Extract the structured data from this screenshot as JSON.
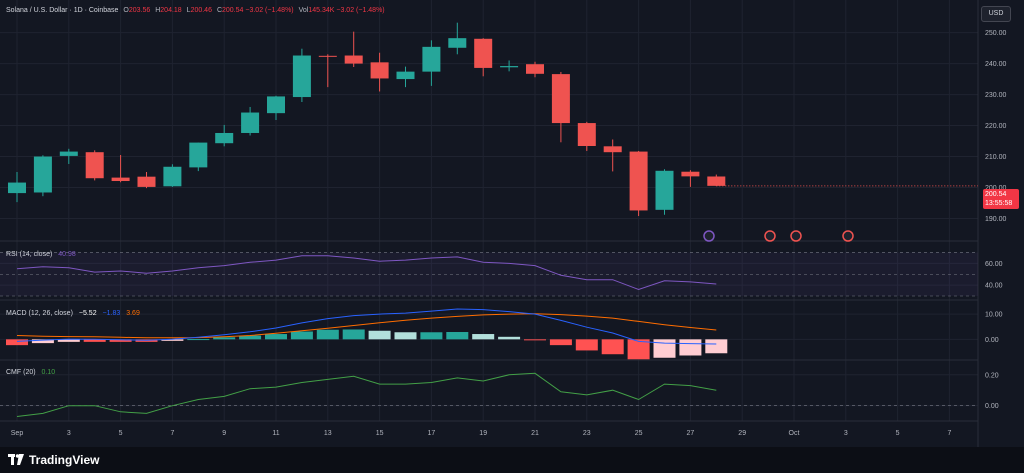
{
  "header": {
    "symbol": "Solana / U.S. Dollar · 1D · Coinbase",
    "open_label": "O",
    "open": "203.56",
    "high_label": "H",
    "high": "204.18",
    "low_label": "L",
    "low": "200.46",
    "close_label": "C",
    "close": "200.54",
    "change": "−3.02 (−1.48%)",
    "vol_label": "Vol",
    "vol": "145.34K",
    "vol_change": "−3.02 (−1.48%)"
  },
  "currency_button": "USD",
  "last_price": {
    "price": "200.54",
    "countdown": "13:55:58"
  },
  "rsi_label": {
    "name": "RSI (14, close)",
    "value": "40.98"
  },
  "macd_label": {
    "name": "MACD (12, 26, close)",
    "hist": "−5.52",
    "macd": "−1.83",
    "signal": "3.69"
  },
  "cmf_label": {
    "name": "CMF (20)",
    "value": "0.10"
  },
  "brand": "TradingView",
  "colors": {
    "bg": "#131722",
    "up": "#26a69a",
    "down": "#ef5350",
    "grid": "#1f2330",
    "rsi": "#7e57c2",
    "macd": "#2962ff",
    "signal": "#ff6d00",
    "cmf": "#43a047",
    "hist_up_strong": "#26a69a",
    "hist_up_weak": "#b2dfdb",
    "hist_down_strong": "#ff5252",
    "hist_down_weak": "#ffcdd2"
  },
  "chart_data": {
    "type": "candlestick",
    "title": "Solana / U.S. Dollar · 1D · Coinbase",
    "x_tick_labels": [
      "Sep",
      "3",
      "5",
      "7",
      "9",
      "11",
      "13",
      "15",
      "17",
      "19",
      "21",
      "23",
      "25",
      "27",
      "29",
      "Oct",
      "3",
      "5",
      "7"
    ],
    "price_axis": {
      "ticks": [
        "190.00",
        "200.00",
        "210.00",
        "220.00",
        "230.00",
        "240.00",
        "250.00"
      ],
      "range": [
        185,
        256
      ]
    },
    "candles": [
      {
        "date": "Sep 1",
        "o": 198.2,
        "h": 205.0,
        "l": 195.3,
        "c": 201.6
      },
      {
        "date": "Sep 2",
        "o": 198.4,
        "h": 210.4,
        "l": 197.2,
        "c": 210.0
      },
      {
        "date": "Sep 3",
        "o": 210.2,
        "h": 212.5,
        "l": 207.6,
        "c": 211.6
      },
      {
        "date": "Sep 4",
        "o": 211.4,
        "h": 212.0,
        "l": 202.3,
        "c": 203.0
      },
      {
        "date": "Sep 5",
        "o": 203.2,
        "h": 210.5,
        "l": 201.7,
        "c": 202.1
      },
      {
        "date": "Sep 6",
        "o": 203.5,
        "h": 205.0,
        "l": 199.8,
        "c": 200.2
      },
      {
        "date": "Sep 7",
        "o": 200.4,
        "h": 207.5,
        "l": 200.2,
        "c": 206.7
      },
      {
        "date": "Sep 8",
        "o": 206.5,
        "h": 214.5,
        "l": 205.3,
        "c": 214.5
      },
      {
        "date": "Sep 9",
        "o": 214.3,
        "h": 220.2,
        "l": 213.3,
        "c": 217.6
      },
      {
        "date": "Sep 10",
        "o": 217.6,
        "h": 226.0,
        "l": 216.8,
        "c": 224.2
      },
      {
        "date": "Sep 11",
        "o": 224.0,
        "h": 229.6,
        "l": 221.8,
        "c": 229.4
      },
      {
        "date": "Sep 12",
        "o": 229.2,
        "h": 244.8,
        "l": 227.6,
        "c": 242.6
      },
      {
        "date": "Sep 13",
        "o": 242.5,
        "h": 243.0,
        "l": 232.4,
        "c": 242.3
      },
      {
        "date": "Sep 14",
        "o": 242.6,
        "h": 250.3,
        "l": 238.9,
        "c": 240.0
      },
      {
        "date": "Sep 15",
        "o": 240.4,
        "h": 243.5,
        "l": 231.0,
        "c": 235.2
      },
      {
        "date": "Sep 16",
        "o": 235.0,
        "h": 239.0,
        "l": 232.4,
        "c": 237.4
      },
      {
        "date": "Sep 17",
        "o": 237.4,
        "h": 247.5,
        "l": 232.8,
        "c": 245.4
      },
      {
        "date": "Sep 18",
        "o": 245.1,
        "h": 253.2,
        "l": 243.0,
        "c": 248.2
      },
      {
        "date": "Sep 19",
        "o": 248.0,
        "h": 248.2,
        "l": 235.9,
        "c": 238.6
      },
      {
        "date": "Sep 20",
        "o": 238.8,
        "h": 241.0,
        "l": 237.5,
        "c": 239.2
      },
      {
        "date": "Sep 21",
        "o": 239.8,
        "h": 240.6,
        "l": 235.6,
        "c": 236.7
      },
      {
        "date": "Sep 22",
        "o": 236.6,
        "h": 237.3,
        "l": 214.6,
        "c": 220.8
      },
      {
        "date": "Sep 23",
        "o": 220.8,
        "h": 221.2,
        "l": 211.8,
        "c": 213.4
      },
      {
        "date": "Sep 24",
        "o": 213.3,
        "h": 215.5,
        "l": 205.2,
        "c": 211.4
      },
      {
        "date": "Sep 25",
        "o": 211.6,
        "h": 211.8,
        "l": 190.8,
        "c": 192.6
      },
      {
        "date": "Sep 26",
        "o": 192.8,
        "h": 205.9,
        "l": 191.2,
        "c": 205.4
      },
      {
        "date": "Sep 27",
        "o": 205.1,
        "h": 205.6,
        "l": 200.2,
        "c": 203.6
      },
      {
        "date": "Sep 28",
        "o": 203.56,
        "h": 204.18,
        "l": 200.46,
        "c": 200.54
      }
    ],
    "rsi": {
      "ticks": [
        "40.00",
        "60.00"
      ],
      "range": [
        30,
        76
      ],
      "band": [
        30,
        70
      ],
      "values": [
        55,
        57,
        56,
        52,
        53,
        51,
        53,
        56,
        58,
        61,
        63,
        67,
        67,
        65,
        62,
        63,
        65,
        66,
        61,
        60,
        58,
        49,
        45,
        45,
        36,
        44,
        43,
        41
      ]
    },
    "macd": {
      "ticks": [
        "0.00",
        "10.00"
      ],
      "range": [
        -7,
        14
      ],
      "macd": [
        -0.8,
        -0.3,
        0.1,
        0.0,
        -0.2,
        -0.4,
        0.0,
        0.8,
        1.8,
        3.0,
        4.5,
        6.5,
        8.2,
        9.4,
        10.0,
        10.4,
        11.2,
        12.0,
        11.8,
        11.0,
        10.0,
        7.5,
        4.8,
        2.5,
        -0.8,
        -1.5,
        -1.7,
        -1.83
      ],
      "signal": [
        1.5,
        1.2,
        1.1,
        1.0,
        0.8,
        0.6,
        0.6,
        0.7,
        1.0,
        1.5,
        2.4,
        3.4,
        4.4,
        5.5,
        6.6,
        7.6,
        8.4,
        9.1,
        9.7,
        10.0,
        10.1,
        9.8,
        9.2,
        8.4,
        7.1,
        5.8,
        4.7,
        3.69
      ],
      "histogram": [
        -2.3,
        -1.5,
        -1.0,
        -1.0,
        -1.0,
        -1.0,
        -0.6,
        0.1,
        0.8,
        1.5,
        2.1,
        3.1,
        3.8,
        3.9,
        3.4,
        2.8,
        2.8,
        2.9,
        2.1,
        1.0,
        -0.1,
        -2.3,
        -4.4,
        -5.9,
        -7.9,
        -7.3,
        -6.4,
        -5.52
      ]
    },
    "cmf": {
      "ticks": [
        "0.00",
        "0.20"
      ],
      "range": [
        -0.08,
        0.27
      ],
      "values": [
        -0.07,
        -0.05,
        0.0,
        0.0,
        -0.04,
        -0.05,
        0.0,
        0.04,
        0.06,
        0.11,
        0.12,
        0.15,
        0.17,
        0.19,
        0.14,
        0.14,
        0.15,
        0.18,
        0.16,
        0.2,
        0.21,
        0.09,
        0.07,
        0.1,
        0.04,
        0.14,
        0.13,
        0.1
      ]
    }
  }
}
